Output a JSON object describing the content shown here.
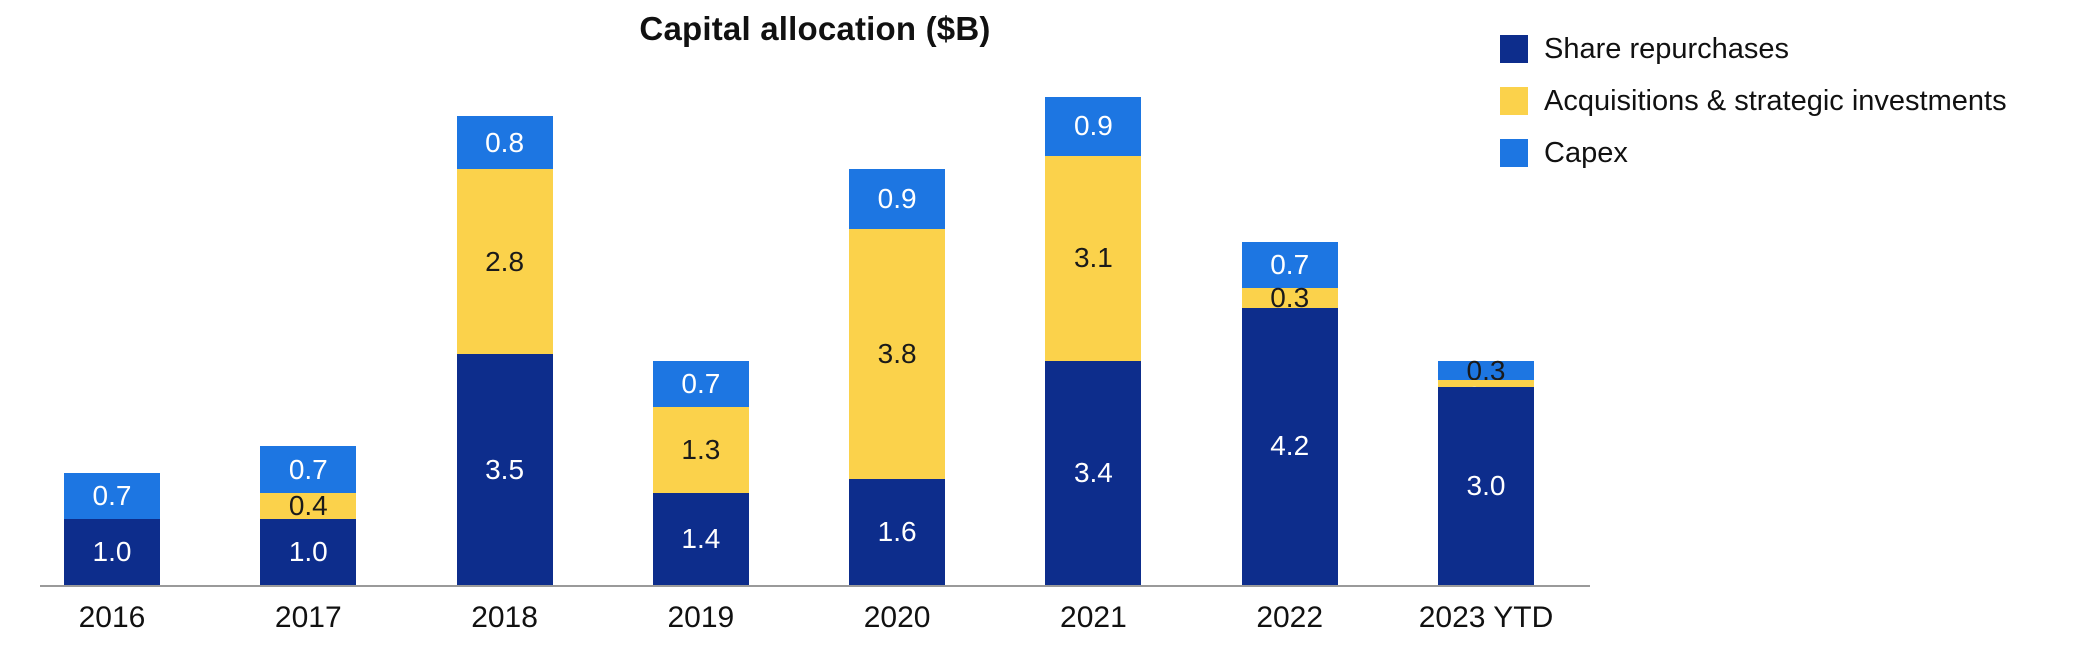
{
  "chart_data": {
    "type": "bar",
    "stacked": true,
    "title": "Capital allocation ($B)",
    "categories": [
      "2016",
      "2017",
      "2018",
      "2019",
      "2020",
      "2021",
      "2022",
      "2023 YTD"
    ],
    "series": [
      {
        "name": "Share repurchases",
        "color": "#0d2d8c",
        "values": [
          1.0,
          1.0,
          3.5,
          1.4,
          1.6,
          3.4,
          4.2,
          3.0
        ],
        "label_colors": [
          "#ffffff",
          "#ffffff",
          "#ffffff",
          "#ffffff",
          "#ffffff",
          "#ffffff",
          "#ffffff",
          "#ffffff"
        ]
      },
      {
        "name": "Acquisitions & strategic investments",
        "color": "#fbd24b",
        "values": [
          0,
          0.4,
          2.8,
          1.3,
          3.8,
          3.1,
          0.3,
          0.1
        ],
        "label_colors": [
          "",
          "#1a1a1a",
          "#1a1a1a",
          "#1a1a1a",
          "#1a1a1a",
          "#1a1a1a",
          "#1a1a1a",
          "#ffffff"
        ]
      },
      {
        "name": "Capex",
        "color": "#1d76e2",
        "values": [
          0.7,
          0.7,
          0.8,
          0.7,
          0.9,
          0.9,
          0.7,
          0.3
        ],
        "label_colors": [
          "#ffffff",
          "#ffffff",
          "#ffffff",
          "#ffffff",
          "#ffffff",
          "#ffffff",
          "#ffffff",
          "#1a1a1a"
        ]
      }
    ],
    "legend_position": "top-right",
    "grid": false,
    "ylim": [
      0,
      8
    ],
    "xlabel": "",
    "ylabel": ""
  }
}
